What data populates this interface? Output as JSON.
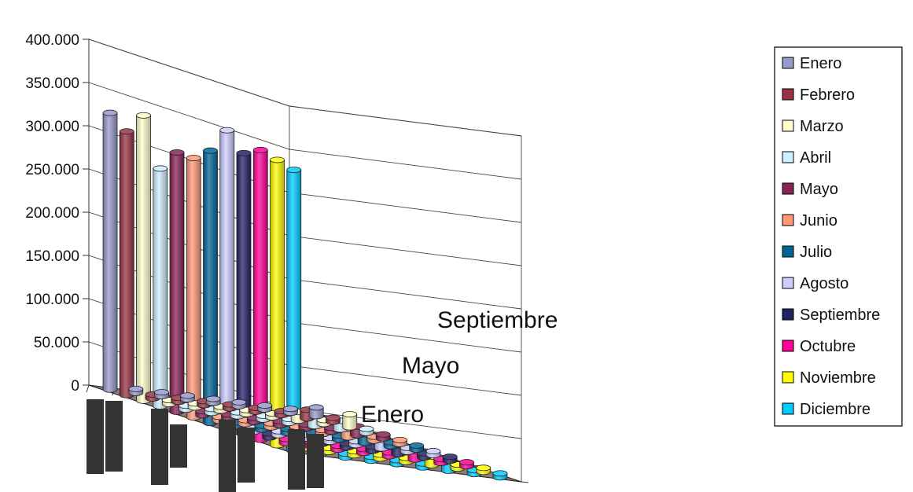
{
  "chart_data": {
    "type": "bar",
    "subtype": "3d-column",
    "title": "",
    "xlabel": "",
    "ylabel": "",
    "ylim": [
      0,
      400000
    ],
    "y_ticks": [
      "0",
      "50.000",
      "100.000",
      "150.000",
      "200.000",
      "250.000",
      "300.000",
      "350.000",
      "400.000"
    ],
    "depth_tick_labels": [
      "Enero",
      "Mayo",
      "Septiembre"
    ],
    "grid": true,
    "legend_position": "right",
    "categories": [
      "",
      "",
      "",
      "",
      "",
      "",
      "",
      "",
      ""
    ],
    "series": [
      {
        "name": "Enero",
        "color": "#9999CC",
        "values": [
          320000,
          0,
          0,
          0,
          0,
          0,
          0,
          0,
          10000
        ]
      },
      {
        "name": "Febrero",
        "color": "#993344",
        "values": [
          305000,
          0,
          0,
          0,
          0,
          0,
          0,
          10000,
          0
        ]
      },
      {
        "name": "Marzo",
        "color": "#FFFFCC",
        "values": [
          330000,
          0,
          0,
          0,
          0,
          0,
          10000,
          0,
          15000
        ]
      },
      {
        "name": "Abril",
        "color": "#CCEEFF",
        "values": [
          275000,
          0,
          0,
          0,
          0,
          0,
          15000,
          10000,
          0
        ]
      },
      {
        "name": "Mayo",
        "color": "#882255",
        "values": [
          300000,
          0,
          0,
          0,
          0,
          0,
          0,
          10000,
          0
        ]
      },
      {
        "name": "Junio",
        "color": "#FF9977",
        "values": [
          300000,
          0,
          0,
          0,
          0,
          0,
          10000,
          0,
          0
        ]
      },
      {
        "name": "Julio",
        "color": "#006699",
        "values": [
          315000,
          0,
          0,
          0,
          0,
          0,
          10000,
          0,
          0
        ]
      },
      {
        "name": "Agosto",
        "color": "#CCCCFF",
        "values": [
          345000,
          0,
          0,
          0,
          0,
          0,
          10000,
          0,
          0
        ]
      },
      {
        "name": "Septiembre",
        "color": "#222266",
        "values": [
          325000,
          0,
          0,
          0,
          0,
          0,
          10000,
          0,
          0
        ]
      },
      {
        "name": "Octubre",
        "color": "#FF0099",
        "values": [
          335000,
          0,
          0,
          0,
          0,
          0,
          10000,
          0,
          0
        ]
      },
      {
        "name": "Noviembre",
        "color": "#FFFF00",
        "values": [
          330000,
          0,
          0,
          0,
          0,
          0,
          10000,
          0,
          0
        ]
      },
      {
        "name": "Diciembre",
        "color": "#00CCFF",
        "values": [
          325000,
          0,
          0,
          0,
          0,
          0,
          10000,
          0,
          0
        ]
      }
    ]
  }
}
